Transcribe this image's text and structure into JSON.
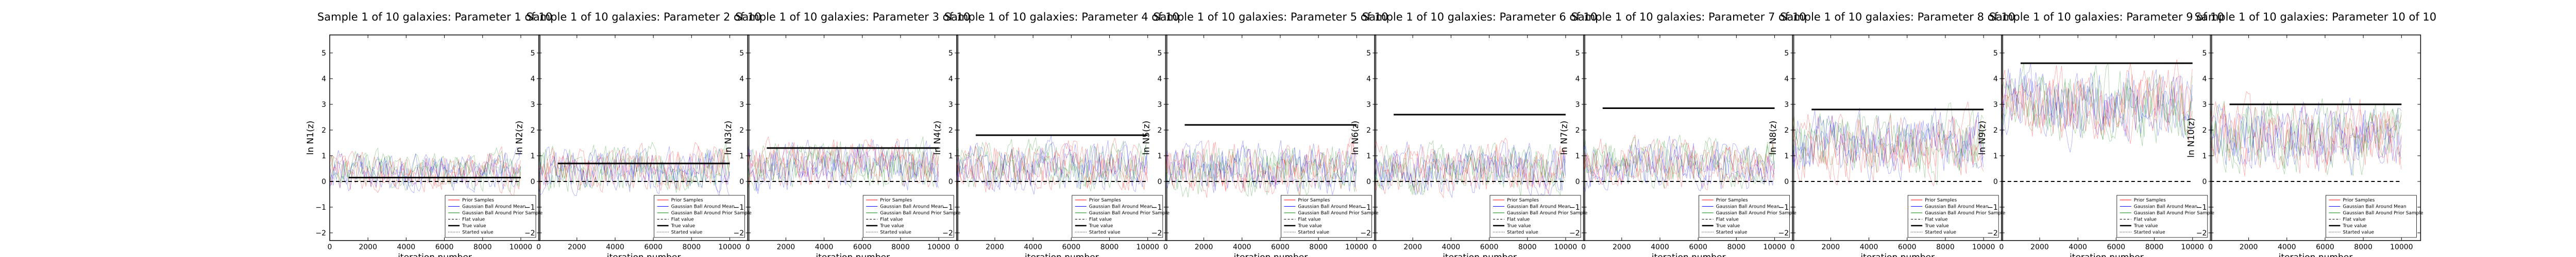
{
  "chart_data": {
    "type": "line",
    "grid": false,
    "legend_placement": "lower right",
    "xlabel": "iteration number",
    "xlim": [
      0,
      11000
    ],
    "ylim": [
      -2.3,
      5.7
    ],
    "x_ticks": [
      0,
      2000,
      4000,
      6000,
      8000,
      10000
    ],
    "x_tick_labels": [
      "0",
      "2000",
      "4000",
      "6000",
      "8000",
      "10000"
    ],
    "y_ticks": [
      -2,
      -1,
      0,
      1,
      2,
      3,
      4,
      5
    ],
    "y_tick_labels": [
      "−2",
      "−1",
      "0",
      "1",
      "2",
      "3",
      "4",
      "5"
    ],
    "legend": [
      {
        "label": "Prior Samples",
        "color": "#ff0000",
        "style": "solid"
      },
      {
        "label": "Gaussian Ball Around Mean",
        "color": "#0000ff",
        "style": "solid"
      },
      {
        "label": "Gaussian Ball Around Prior Sample",
        "color": "#008000",
        "style": "solid"
      },
      {
        "label": "Flat value",
        "color": "#000000",
        "style": "dashed"
      },
      {
        "label": "True value",
        "color": "#000000",
        "style": "thick"
      },
      {
        "label": "Started value",
        "color": "#000000",
        "style": "dotted"
      }
    ],
    "series_colors": {
      "prior": "#ff0000",
      "mean_ball": "#0000ff",
      "sample_ball": "#008000"
    },
    "panels": [
      {
        "title": "Sample 1 of 10 galaxies: Parameter 1 of 10",
        "ylabel": "ln N1(z)",
        "true_value": 0.15,
        "flat_value": 0.0,
        "chain_center": 0.4,
        "chain_spread": 1.2
      },
      {
        "title": "Sample 1 of 10 galaxies: Parameter 2 of 10",
        "ylabel": "ln N2(z)",
        "true_value": 0.7,
        "flat_value": 0.0,
        "chain_center": 0.5,
        "chain_spread": 1.4
      },
      {
        "title": "Sample 1 of 10 galaxies: Parameter 3 of 10",
        "ylabel": "ln N3(z)",
        "true_value": 1.3,
        "flat_value": 0.0,
        "chain_center": 0.6,
        "chain_spread": 1.5
      },
      {
        "title": "Sample 1 of 10 galaxies: Parameter 4 of 10",
        "ylabel": "ln N4(z)",
        "true_value": 1.8,
        "flat_value": 0.0,
        "chain_center": 0.6,
        "chain_spread": 1.5
      },
      {
        "title": "Sample 1 of 10 galaxies: Parameter 5 of 10",
        "ylabel": "ln N5(z)",
        "true_value": 2.2,
        "flat_value": 0.0,
        "chain_center": 0.5,
        "chain_spread": 1.6
      },
      {
        "title": "Sample 1 of 10 galaxies: Parameter 6 of 10",
        "ylabel": "ln N6(z)",
        "true_value": 2.6,
        "flat_value": 0.0,
        "chain_center": 0.5,
        "chain_spread": 1.5
      },
      {
        "title": "Sample 1 of 10 galaxies: Parameter 7 of 10",
        "ylabel": "ln N7(z)",
        "true_value": 2.85,
        "flat_value": 0.0,
        "chain_center": 0.7,
        "chain_spread": 1.5
      },
      {
        "title": "Sample 1 of 10 galaxies: Parameter 8 of 10",
        "ylabel": "ln N8(z)",
        "true_value": 2.8,
        "flat_value": 0.0,
        "chain_center": 1.4,
        "chain_spread": 2.0
      },
      {
        "title": "Sample 1 of 10 galaxies: Parameter 9 of 10",
        "ylabel": "ln N9(z)",
        "true_value": 4.6,
        "flat_value": 0.0,
        "chain_center": 3.0,
        "chain_spread": 2.2
      },
      {
        "title": "Sample 1 of 10 galaxies: Parameter 10 of 10",
        "ylabel": "ln N10(z)",
        "true_value": 3.0,
        "flat_value": 0.0,
        "chain_center": 1.8,
        "chain_spread": 2.2
      }
    ]
  }
}
